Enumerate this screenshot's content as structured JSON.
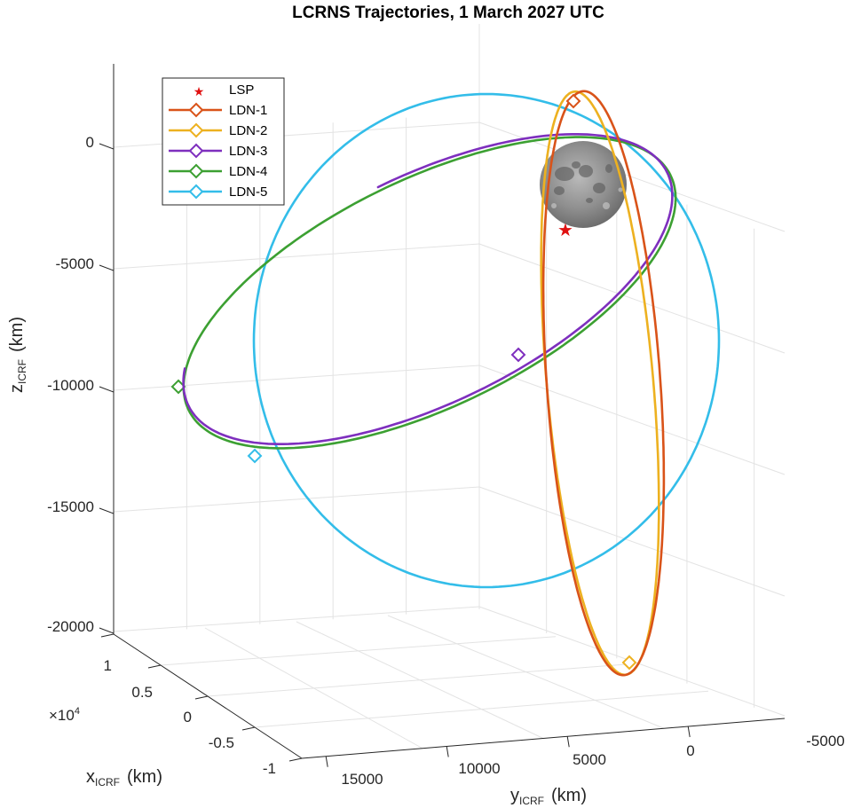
{
  "chart_data": {
    "type": "line",
    "projection": "3d",
    "title": "LCRNS Trajectories, 1 March 2027 UTC",
    "xlabel": {
      "main": "x",
      "sub": "ICRF",
      "unit": "(km)"
    },
    "ylabel": {
      "main": "y",
      "sub": "ICRF",
      "unit": "(km)"
    },
    "zlabel": {
      "main": "z",
      "sub": "ICRF",
      "unit": "(km)"
    },
    "x_multiplier": {
      "base": "×10",
      "exp": "4"
    },
    "xlim": [
      -10000,
      10000
    ],
    "ylim": [
      -5000,
      15000
    ],
    "zlim": [
      -20000,
      0
    ],
    "x_ticks": [
      "1",
      "0.5",
      "0",
      "-0.5",
      "-1"
    ],
    "y_ticks": [
      "15000",
      "10000",
      "5000",
      "0",
      "-5000"
    ],
    "z_ticks": [
      "0",
      "-5000",
      "-10000",
      "-15000",
      "-20000"
    ],
    "grid": true,
    "legend_location": "top-left",
    "lsp_marker": {
      "name": "LSP",
      "symbol": "★",
      "color": "#e01010"
    },
    "moon": {
      "name": "Moon",
      "center": [
        0,
        0,
        0
      ],
      "radius_km": 1737
    },
    "series": [
      {
        "name": "LDN-1",
        "color": "#d95319",
        "marker": "diamond"
      },
      {
        "name": "LDN-2",
        "color": "#edb120",
        "marker": "diamond"
      },
      {
        "name": "LDN-3",
        "color": "#7e2fbe",
        "marker": "diamond"
      },
      {
        "name": "LDN-4",
        "color": "#3ca032",
        "marker": "diamond"
      },
      {
        "name": "LDN-5",
        "color": "#33bde9",
        "marker": "diamond"
      }
    ]
  }
}
